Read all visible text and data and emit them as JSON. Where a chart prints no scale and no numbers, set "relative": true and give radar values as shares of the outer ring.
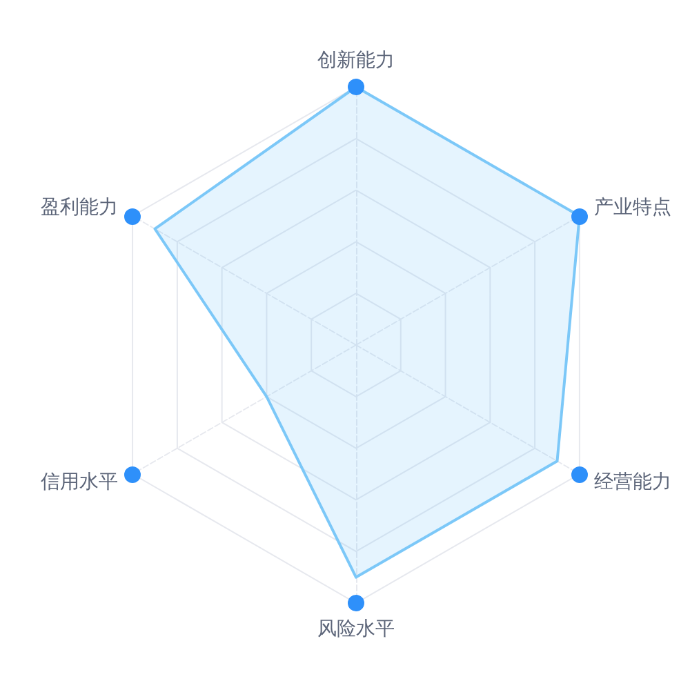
{
  "chart_data": {
    "type": "radar",
    "categories": [
      "创新能力",
      "产业特点",
      "经营能力",
      "风险水平",
      "信用水平",
      "盈利能力"
    ],
    "relative": true,
    "series": [
      {
        "color": "#7cc8f8",
        "values": [
          1,
          1,
          0.9,
          0.9,
          0.4,
          0.9
        ]
      }
    ],
    "grid": true,
    "marker": "none",
    "line_style": "solid"
  }
}
